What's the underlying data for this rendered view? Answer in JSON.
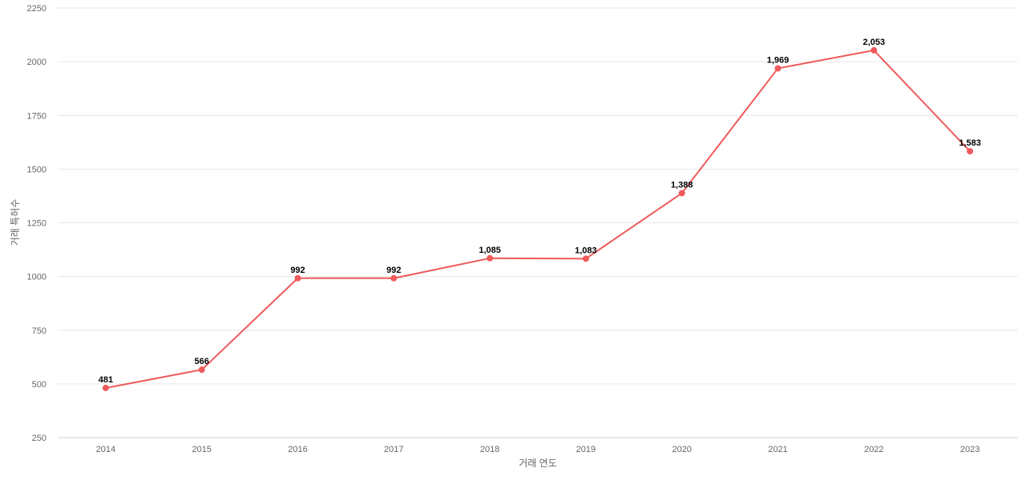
{
  "chart_data": {
    "type": "line",
    "categories": [
      "2014",
      "2015",
      "2016",
      "2017",
      "2018",
      "2019",
      "2020",
      "2021",
      "2022",
      "2023"
    ],
    "series": [
      {
        "values": [
          481,
          566,
          992,
          992,
          1085,
          1083,
          1388,
          1969,
          2053,
          1583
        ],
        "value_labels": [
          "481",
          "566",
          "992",
          "992",
          "1,085",
          "1,083",
          "1,388",
          "1,969",
          "2,053",
          "1,583"
        ],
        "color": "#ef5a5a"
      }
    ],
    "xlabel": "거래 연도",
    "ylabel": "거래 특허수",
    "ylim": [
      250,
      2250
    ],
    "yticks": [
      "250",
      "500",
      "750",
      "1000",
      "1250",
      "1500",
      "1750",
      "2000",
      "2250"
    ],
    "grid": true,
    "legend": "none"
  }
}
